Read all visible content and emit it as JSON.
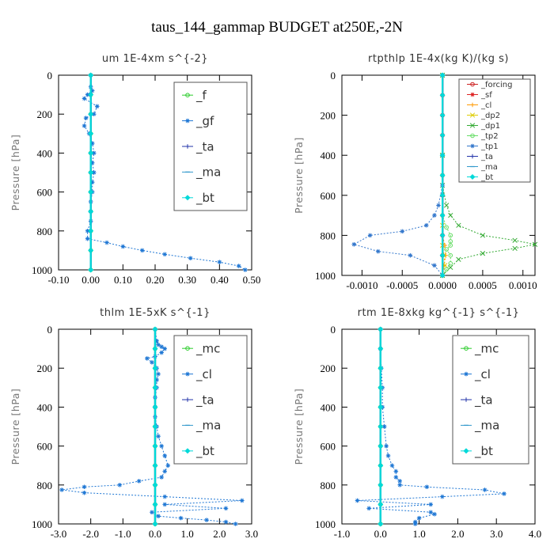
{
  "figure_title": "taus_144_gammap  BUDGET at250E,-2N",
  "chart_data": [
    {
      "type": "line",
      "title": "um  1E-4xm s^{-2}",
      "ylabel": "Pressure [hPa]",
      "xlim": [
        -0.1,
        0.5
      ],
      "ylim": [
        1000,
        0
      ],
      "xticks": [
        -0.1,
        0.0,
        0.1,
        0.2,
        0.3,
        0.4,
        0.5
      ],
      "xtick_labels": [
        "-0.10",
        "0.00",
        "0.10",
        "0.20",
        "0.30",
        "0.40",
        "0.50"
      ],
      "yticks": [
        0,
        200,
        400,
        600,
        800,
        1000
      ],
      "ytick_labels": [
        "0",
        "200",
        "400",
        "600",
        "800",
        "1000"
      ],
      "legend_position": "top-right",
      "legend_font_size": 15,
      "series": [
        {
          "name": "_f",
          "color": "#2ecc2e",
          "marker": "circle",
          "x": [
            0,
            0,
            0,
            0,
            0,
            0,
            0,
            0,
            0,
            0,
            0
          ],
          "y": [
            0,
            100,
            200,
            300,
            400,
            500,
            600,
            700,
            800,
            900,
            1000
          ]
        },
        {
          "name": "_gf",
          "color": "#1f77d4",
          "marker": "star",
          "x": [
            0.0,
            0.0,
            0.005,
            -0.01,
            -0.02,
            0.02,
            0.01,
            -0.015,
            -0.02,
            -0.005,
            0.005,
            0.01,
            0.005,
            0.01,
            0.005,
            0.005,
            0.0,
            0.0,
            0.0,
            -0.01,
            -0.01,
            0.05,
            0.1,
            0.16,
            0.23,
            0.31,
            0.4,
            0.46,
            0.48
          ],
          "y": [
            0,
            60,
            80,
            100,
            120,
            160,
            200,
            220,
            260,
            300,
            350,
            400,
            450,
            500,
            550,
            600,
            650,
            700,
            750,
            800,
            840,
            860,
            880,
            900,
            920,
            940,
            960,
            980,
            1000
          ]
        },
        {
          "name": "_ta",
          "color": "#2233aa",
          "marker": "plus",
          "x": [
            0,
            0,
            0,
            0,
            0,
            0,
            0,
            0,
            0,
            0,
            0
          ],
          "y": [
            0,
            100,
            200,
            300,
            400,
            500,
            600,
            700,
            800,
            900,
            1000
          ]
        },
        {
          "name": "_ma",
          "color": "#3399cc",
          "marker": "dash",
          "x": [
            0,
            0,
            0,
            0,
            0,
            0,
            0,
            0,
            0,
            0,
            0
          ],
          "y": [
            0,
            100,
            200,
            300,
            400,
            500,
            600,
            700,
            800,
            900,
            1000
          ]
        },
        {
          "name": "_bt",
          "color": "#00d9d9",
          "marker": "diamond",
          "x": [
            0,
            0,
            0,
            0,
            0,
            0,
            0,
            0,
            0,
            0,
            0
          ],
          "y": [
            0,
            100,
            200,
            300,
            400,
            500,
            600,
            700,
            800,
            900,
            1000
          ]
        }
      ]
    },
    {
      "type": "line",
      "title": "rtpthlp  1E-4x(kg K)/(kg s)",
      "ylabel": "Pressure [hPa]",
      "xlim": [
        -0.00125,
        0.00115
      ],
      "ylim": [
        1000,
        0
      ],
      "xticks": [
        -0.001,
        -0.0005,
        0.0,
        0.0005,
        0.001
      ],
      "xtick_labels": [
        "-0.0010",
        "-0.0005",
        "0.0000",
        "0.0005",
        "0.0010"
      ],
      "yticks": [
        0,
        200,
        400,
        600,
        800,
        1000
      ],
      "ytick_labels": [
        "0",
        "200",
        "400",
        "600",
        "800",
        "1000"
      ],
      "legend_position": "top-right",
      "legend_font_size": 10,
      "series": [
        {
          "name": "_forcing",
          "color": "#cc2222",
          "marker": "circle",
          "x": [
            0,
            0,
            0,
            0,
            0,
            0,
            0,
            0,
            0,
            0,
            0
          ],
          "y": [
            0,
            100,
            200,
            300,
            400,
            500,
            600,
            700,
            800,
            900,
            1000
          ]
        },
        {
          "name": "_sf",
          "color": "#dd2222",
          "marker": "star",
          "x": [
            0,
            0,
            0,
            0,
            0,
            0,
            0,
            0,
            0,
            0,
            0
          ],
          "y": [
            0,
            100,
            200,
            300,
            400,
            500,
            600,
            700,
            800,
            900,
            1000
          ]
        },
        {
          "name": "_cl",
          "color": "#ff9900",
          "marker": "plus",
          "x": [
            0,
            0,
            0,
            0,
            3e-05,
            4e-05,
            2e-05,
            0
          ],
          "y": [
            0,
            400,
            700,
            800,
            850,
            900,
            950,
            1000
          ]
        },
        {
          "name": "_dp2",
          "color": "#ddcc00",
          "marker": "cross",
          "x": [
            0,
            0,
            0,
            0,
            2e-05,
            3e-05,
            0
          ],
          "y": [
            0,
            400,
            750,
            850,
            900,
            950,
            1000
          ]
        },
        {
          "name": "_dp1",
          "color": "#33aa33",
          "marker": "cross",
          "x": [
            0,
            0,
            0,
            5e-05,
            0.0001,
            0.0002,
            0.0005,
            0.0009,
            0.00115,
            0.0009,
            0.0005,
            0.0002,
            0.0001,
            0
          ],
          "y": [
            0,
            400,
            550,
            650,
            700,
            750,
            800,
            825,
            845,
            865,
            890,
            920,
            960,
            1000
          ]
        },
        {
          "name": "_tp2",
          "color": "#66dd66",
          "marker": "circle",
          "x": [
            0,
            0,
            0,
            5e-05,
            0.0001,
            0.0001,
            0.0001,
            5e-05,
            0.0001,
            0.0001,
            5e-05,
            0
          ],
          "y": [
            0,
            500,
            700,
            760,
            800,
            830,
            850,
            870,
            900,
            940,
            970,
            1000
          ]
        },
        {
          "name": "_tp1",
          "color": "#3377cc",
          "marker": "star",
          "x": [
            0,
            0,
            0,
            -5e-05,
            -0.0001,
            -0.0002,
            -0.0005,
            -0.0009,
            -0.0011,
            -0.0008,
            -0.0004,
            -0.0001,
            0
          ],
          "y": [
            0,
            400,
            550,
            650,
            700,
            750,
            780,
            800,
            845,
            880,
            900,
            950,
            1000
          ]
        },
        {
          "name": "_ta",
          "color": "#2233aa",
          "marker": "plus",
          "x": [
            0,
            0,
            0,
            0,
            0,
            0,
            0,
            0,
            0,
            0,
            0
          ],
          "y": [
            0,
            100,
            200,
            300,
            400,
            500,
            600,
            700,
            800,
            900,
            1000
          ]
        },
        {
          "name": "_ma",
          "color": "#3399cc",
          "marker": "dash",
          "x": [
            0,
            0,
            0,
            0,
            0,
            0,
            0,
            0,
            0,
            0,
            0
          ],
          "y": [
            0,
            100,
            200,
            300,
            400,
            500,
            600,
            700,
            800,
            900,
            1000
          ]
        },
        {
          "name": "_bt",
          "color": "#00d9d9",
          "marker": "diamond",
          "x": [
            0,
            0,
            0,
            0,
            0,
            0,
            0,
            0,
            0,
            0,
            0
          ],
          "y": [
            0,
            100,
            200,
            300,
            400,
            500,
            600,
            700,
            800,
            900,
            1000
          ]
        }
      ]
    },
    {
      "type": "line",
      "title": "thlm  1E-5xK  s^{-1}",
      "ylabel": "Pressure [hPa]",
      "xlim": [
        -3.0,
        3.0
      ],
      "ylim": [
        1000,
        0
      ],
      "xticks": [
        -3,
        -2,
        -1,
        0,
        1,
        2,
        3
      ],
      "xtick_labels": [
        "-3.0",
        "-2.0",
        "-1.0",
        "0.0",
        "1.0",
        "2.0",
        "3.0"
      ],
      "yticks": [
        0,
        200,
        400,
        600,
        800,
        1000
      ],
      "ytick_labels": [
        "0",
        "200",
        "400",
        "600",
        "800",
        "1000"
      ],
      "legend_position": "top-right",
      "legend_font_size": 15,
      "series": [
        {
          "name": "_mc",
          "color": "#2ecc2e",
          "marker": "circle",
          "x": [
            0,
            0,
            0,
            0,
            0,
            0,
            0,
            0,
            0,
            0,
            0
          ],
          "y": [
            0,
            100,
            200,
            300,
            400,
            500,
            600,
            700,
            800,
            900,
            1000
          ]
        },
        {
          "name": "_cl",
          "color": "#1f77d4",
          "marker": "star",
          "x": [
            0.0,
            0.05,
            0.1,
            0.2,
            0.3,
            0.2,
            0.0,
            -0.25,
            -0.1,
            0.05,
            0.1,
            0.05,
            0.05,
            0.0,
            0.0,
            0.0,
            0.05,
            0.1,
            0.2,
            0.3,
            0.4,
            0.3,
            0.2,
            -0.5,
            -1.1,
            -2.2,
            -2.9,
            -2.2,
            0.3,
            2.7,
            0.3,
            2.2,
            -0.1,
            0.1,
            0.8,
            1.6,
            2.2,
            2.5
          ],
          "y": [
            0,
            60,
            80,
            90,
            100,
            120,
            140,
            150,
            170,
            200,
            230,
            260,
            300,
            350,
            400,
            450,
            500,
            550,
            600,
            650,
            700,
            730,
            760,
            780,
            800,
            810,
            825,
            840,
            860,
            880,
            900,
            920,
            940,
            960,
            970,
            980,
            990,
            1000
          ]
        },
        {
          "name": "_ta",
          "color": "#2233aa",
          "marker": "plus",
          "x": [
            0,
            0,
            0,
            0,
            0,
            0,
            0,
            0,
            0,
            0,
            0
          ],
          "y": [
            0,
            100,
            200,
            300,
            400,
            500,
            600,
            700,
            800,
            900,
            1000
          ]
        },
        {
          "name": "_ma",
          "color": "#3399cc",
          "marker": "dash",
          "x": [
            0,
            0,
            0,
            0,
            0,
            0,
            0,
            0,
            0,
            0,
            0
          ],
          "y": [
            0,
            100,
            200,
            300,
            400,
            500,
            600,
            700,
            800,
            900,
            1000
          ]
        },
        {
          "name": "_bt",
          "color": "#00d9d9",
          "marker": "diamond",
          "x": [
            0,
            0,
            0,
            0,
            0,
            0,
            0,
            0,
            0,
            0,
            0
          ],
          "y": [
            0,
            100,
            200,
            300,
            400,
            500,
            600,
            700,
            800,
            900,
            1000
          ]
        }
      ]
    },
    {
      "type": "line",
      "title": "rtm  1E-8xkg kg^{-1} s^{-1}",
      "ylabel": "Pressure [hPa]",
      "xlim": [
        -1.0,
        4.0
      ],
      "ylim": [
        1000,
        0
      ],
      "xticks": [
        -1,
        0,
        1,
        2,
        3,
        4
      ],
      "xtick_labels": [
        "-1.0",
        "0.0",
        "1.0",
        "2.0",
        "3.0",
        "4.0"
      ],
      "yticks": [
        0,
        200,
        400,
        600,
        800,
        1000
      ],
      "ytick_labels": [
        "0",
        "200",
        "400",
        "600",
        "800",
        "1000"
      ],
      "legend_position": "top-right",
      "legend_font_size": 15,
      "series": [
        {
          "name": "_mc",
          "color": "#2ecc2e",
          "marker": "circle",
          "x": [
            0,
            0,
            0,
            0,
            0,
            0,
            0,
            0,
            0,
            0,
            0
          ],
          "y": [
            0,
            100,
            200,
            300,
            400,
            500,
            600,
            700,
            800,
            900,
            1000
          ]
        },
        {
          "name": "_cl",
          "color": "#1f77d4",
          "marker": "star",
          "x": [
            0.0,
            0.0,
            0.02,
            0.05,
            0.05,
            0.1,
            0.15,
            0.2,
            0.3,
            0.4,
            0.4,
            0.5,
            0.5,
            1.2,
            2.7,
            3.2,
            1.6,
            -0.6,
            1.3,
            -0.3,
            1.3,
            1.4,
            1.0,
            0.9,
            0.9
          ],
          "y": [
            0,
            100,
            200,
            300,
            400,
            500,
            600,
            650,
            700,
            730,
            760,
            780,
            800,
            810,
            825,
            845,
            860,
            880,
            900,
            920,
            940,
            950,
            970,
            990,
            1000
          ]
        },
        {
          "name": "_ta",
          "color": "#2233aa",
          "marker": "plus",
          "x": [
            0,
            0,
            0,
            0,
            0,
            0,
            0,
            0,
            0,
            0,
            0
          ],
          "y": [
            0,
            100,
            200,
            300,
            400,
            500,
            600,
            700,
            800,
            900,
            1000
          ]
        },
        {
          "name": "_ma",
          "color": "#3399cc",
          "marker": "dash",
          "x": [
            0,
            0,
            0,
            0,
            0,
            0,
            0,
            0,
            0,
            0,
            0
          ],
          "y": [
            0,
            100,
            200,
            300,
            400,
            500,
            600,
            700,
            800,
            900,
            1000
          ]
        },
        {
          "name": "_bt",
          "color": "#00d9d9",
          "marker": "diamond",
          "x": [
            0,
            0,
            0,
            0,
            0,
            0,
            0,
            0,
            0,
            0,
            0
          ],
          "y": [
            0,
            100,
            200,
            300,
            400,
            500,
            600,
            700,
            800,
            900,
            1000
          ]
        }
      ]
    }
  ]
}
